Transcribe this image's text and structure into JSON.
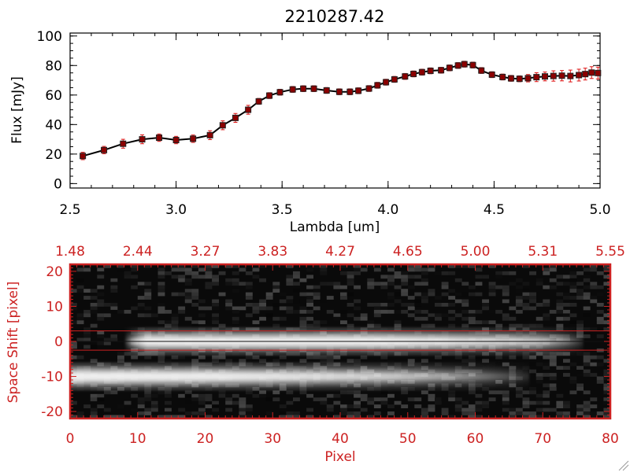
{
  "colors": {
    "axis": "#000000",
    "accent": "#cc2222",
    "errorbar": "#dd1111",
    "marker": "#8b0000",
    "line": "#000000"
  },
  "chart_data": [
    {
      "type": "line",
      "title": "2210287.42",
      "xlabel": "Lambda [um]",
      "ylabel": "Flux [mJy]",
      "xlim": [
        2.5,
        5.0
      ],
      "ylim": [
        -3,
        102
      ],
      "grid": false,
      "xticks": [
        "2.5",
        "3.0",
        "3.5",
        "4.0",
        "4.5",
        "5.0"
      ],
      "yticks": [
        "0",
        "20",
        "40",
        "60",
        "80",
        "100"
      ],
      "series": [
        {
          "x": [
            2.56,
            2.66,
            2.75,
            2.84,
            2.92,
            3.0,
            3.08,
            3.16,
            3.22,
            3.28,
            3.34,
            3.39,
            3.44,
            3.49,
            3.55,
            3.6,
            3.65,
            3.71,
            3.77,
            3.82,
            3.86,
            3.91,
            3.95,
            3.99,
            4.03,
            4.08,
            4.12,
            4.16,
            4.2,
            4.25,
            4.29,
            4.33,
            4.36,
            4.4,
            4.44,
            4.49,
            4.54,
            4.58,
            4.62,
            4.66,
            4.7,
            4.74,
            4.78,
            4.82,
            4.86,
            4.9,
            4.93,
            4.96,
            4.99
          ],
          "y": [
            18.7,
            22.7,
            27.0,
            30.0,
            31.1,
            29.5,
            30.4,
            32.8,
            39.5,
            44.5,
            50.0,
            55.7,
            59.6,
            61.9,
            63.8,
            64.3,
            64.3,
            63.1,
            62.2,
            62.2,
            62.9,
            64.4,
            66.6,
            68.7,
            70.6,
            72.6,
            74.3,
            75.5,
            76.4,
            76.8,
            78.4,
            80.0,
            80.9,
            80.3,
            76.6,
            73.8,
            72.2,
            71.3,
            71.0,
            71.4,
            72.1,
            72.6,
            72.9,
            73.1,
            72.9,
            73.5,
            74.2,
            75.2,
            74.9
          ],
          "yerr": [
            2.5,
            2.5,
            3,
            3,
            2.5,
            2.5,
            2.5,
            3,
            3,
            3,
            3,
            2,
            2,
            2,
            2,
            2,
            2,
            2,
            2,
            2,
            2,
            2,
            2,
            2,
            2,
            2,
            2,
            2,
            2,
            2,
            2,
            2,
            2,
            2,
            2,
            2,
            2,
            2,
            2,
            2.5,
            3,
            3,
            3.5,
            3.5,
            4,
            4,
            4,
            4,
            4
          ]
        }
      ]
    },
    {
      "type": "heatmap",
      "xlabel": "Pixel",
      "ylabel": "Space Shift [pixel]",
      "xlim": [
        0,
        80
      ],
      "ylim": [
        -22,
        22
      ],
      "xticks": [
        "0",
        "10",
        "20",
        "30",
        "40",
        "50",
        "60",
        "70",
        "80"
      ],
      "yticks": [
        "-20",
        "-10",
        "0",
        "10",
        "20"
      ],
      "top_axis_labels": [
        "1.48",
        "2.44",
        "3.27",
        "3.83",
        "4.27",
        "4.65",
        "5.00",
        "5.31",
        "5.55"
      ],
      "traces": [
        {
          "name_hidden": "",
          "center": 0,
          "x_start": 8,
          "x_end": 76,
          "peak": 0.95
        },
        {
          "center": -10,
          "x_start": 0,
          "x_end": 68,
          "peak": 1.0
        }
      ],
      "extraction_window": [
        -2.5,
        3.0
      ]
    }
  ]
}
